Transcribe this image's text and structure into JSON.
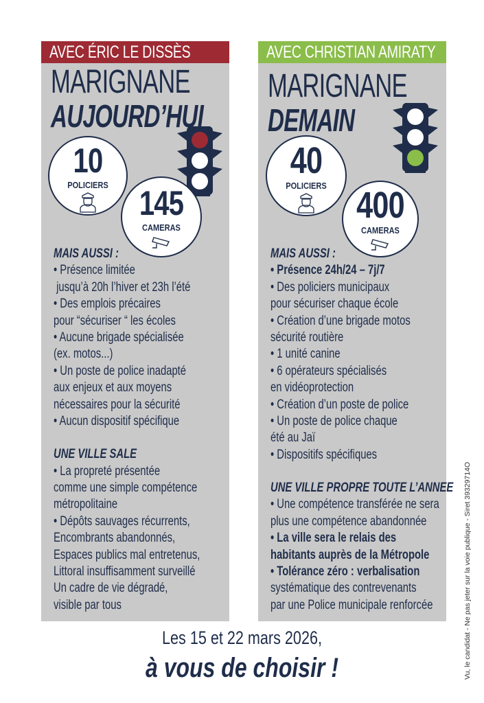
{
  "colors": {
    "navy": "#1f2d4a",
    "red": "#9e2b34",
    "green": "#8bbd4a",
    "panel": "#c9c9c9"
  },
  "left": {
    "band": "AVEC ÉRIC LE DISSÈS",
    "title1": "MARIGNANE",
    "title2": "AUJOURD’HUI",
    "traffic_light_active": "red",
    "police": {
      "value": "10",
      "label": "POLICIERS",
      "icon": "police-officer-icon"
    },
    "cameras": {
      "value": "145",
      "label": "CAMERAS",
      "icon": "cctv-camera-icon"
    },
    "lines": [
      {
        "t": "MAIS AUSSI :",
        "k": "h"
      },
      {
        "t": "• Présence limitée",
        "k": ""
      },
      {
        "t": " jusqu’à 20h l’hiver et 23h l’été",
        "k": ""
      },
      {
        "t": "• Des emplois précaires",
        "k": ""
      },
      {
        "t": "pour “sécuriser “ les écoles",
        "k": ""
      },
      {
        "t": "• Aucune brigade spécialisée",
        "k": ""
      },
      {
        "t": "(ex. motos...)",
        "k": ""
      },
      {
        "t": "• Un poste de police inadapté",
        "k": ""
      },
      {
        "t": "aux enjeux et aux moyens",
        "k": ""
      },
      {
        "t": "nécessaires pour la sécurité",
        "k": ""
      },
      {
        "t": "• Aucun dispositif spécifique",
        "k": ""
      },
      {
        "t": "",
        "k": "gap"
      },
      {
        "t": "UNE VILLE SALE",
        "k": "h"
      },
      {
        "t": "• La propreté présentée",
        "k": ""
      },
      {
        "t": "comme une simple compétence",
        "k": ""
      },
      {
        "t": "métropolitaine",
        "k": ""
      },
      {
        "t": "• Dépôts sauvages récurrents,",
        "k": ""
      },
      {
        "t": "Encombrants abandonnés,",
        "k": ""
      },
      {
        "t": "Espaces publics mal entretenus,",
        "k": ""
      },
      {
        "t": "Littoral insuffisamment surveillé",
        "k": ""
      },
      {
        "t": "Un cadre de vie dégradé,",
        "k": ""
      },
      {
        "t": "visible par tous",
        "k": ""
      }
    ]
  },
  "right": {
    "band": "AVEC CHRISTIAN AMIRATY",
    "title1": "MARIGNANE",
    "title2": "DEMAIN",
    "traffic_light_active": "green",
    "police": {
      "value": "40",
      "label": "POLICIERS",
      "icon": "police-officer-icon"
    },
    "cameras": {
      "value": "400",
      "label": "CAMERAS",
      "icon": "cctv-camera-icon"
    },
    "lines": [
      {
        "t": "MAIS AUSSI :",
        "k": "h"
      },
      {
        "t": "• Présence 24h/24 – 7j/7",
        "k": "b"
      },
      {
        "t": "• Des policiers municipaux",
        "k": ""
      },
      {
        "t": "pour sécuriser chaque école",
        "k": ""
      },
      {
        "t": "• Création d’une brigade motos",
        "k": ""
      },
      {
        "t": "sécurité routière",
        "k": ""
      },
      {
        "t": "• 1 unité canine",
        "k": ""
      },
      {
        "t": "• 6 opérateurs spécialisés",
        "k": ""
      },
      {
        "t": "en vidéoprotection",
        "k": ""
      },
      {
        "t": "• Création d’un poste de police",
        "k": ""
      },
      {
        "t": "• Un poste de police chaque",
        "k": ""
      },
      {
        "t": "été au Jaï",
        "k": ""
      },
      {
        "t": "• Dispositifs spécifiques",
        "k": ""
      },
      {
        "t": "",
        "k": "gap"
      },
      {
        "t": "UNE VILLE PROPRE TOUTE L’ANNEE",
        "k": "h"
      },
      {
        "t": "• Une compétence transférée ne sera",
        "k": ""
      },
      {
        "t": "plus une compétence abandonnée",
        "k": ""
      },
      {
        "t": "• La ville sera le relais des",
        "k": "b"
      },
      {
        "t": "habitants auprès de la Métropole",
        "k": "b"
      },
      {
        "t": "• Tolérance zéro : verbalisation",
        "k": "b"
      },
      {
        "t": "systématique des contrevenants",
        "k": ""
      },
      {
        "t": "par une Police municipale renforcée",
        "k": ""
      }
    ]
  },
  "footer": {
    "line1": "Les 15 et 22 mars 2026,",
    "line2": "à vous de choisir !"
  },
  "legal": "Vu, le candidat - Ne pas jeter sur la voie publique - Siret 39329714O"
}
